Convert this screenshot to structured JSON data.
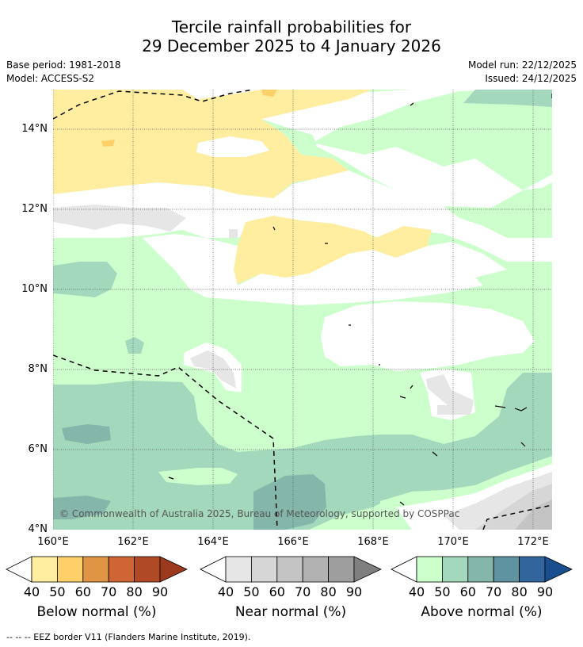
{
  "title": {
    "line1": "Tercile rainfall probabilities for",
    "line2": "29 December 2025 to 4 January 2026"
  },
  "meta_left": {
    "base_period": "Base period: 1981-2018",
    "model": "Model: ACCESS-S2"
  },
  "meta_right": {
    "model_run": "Model run: 22/12/2025",
    "issued": "Issued: 24/12/2025"
  },
  "map": {
    "lat_labels": [
      "14°N",
      "12°N",
      "10°N",
      "8°N",
      "6°N",
      "4°N"
    ],
    "lon_labels": [
      "160°E",
      "162°E",
      "164°E",
      "166°E",
      "168°E",
      "170°E",
      "172°E"
    ],
    "copyright": "© Commonwealth of Australia 2025, Bureau of Meteorology, supported by COSPPac"
  },
  "legends": {
    "below": {
      "title": "Below normal (%)",
      "ticks": [
        "40",
        "50",
        "60",
        "70",
        "80",
        "90"
      ],
      "colors": [
        "#ffeda0",
        "#fed06a",
        "#e09545",
        "#cf6434",
        "#b04a26",
        "#9c3a1f"
      ]
    },
    "near": {
      "title": "Near normal (%)",
      "ticks": [
        "40",
        "50",
        "60",
        "70",
        "80",
        "90"
      ],
      "colors": [
        "#e6e6e6",
        "#d6d6d6",
        "#c4c4c4",
        "#b2b2b2",
        "#9e9e9e",
        "#7f7f7f"
      ]
    },
    "above": {
      "title": "Above normal (%)",
      "ticks": [
        "40",
        "50",
        "60",
        "70",
        "80",
        "90"
      ],
      "colors": [
        "#ccffcc",
        "#a3d8bc",
        "#84b7aa",
        "#5f93a1",
        "#31659b",
        "#1a4f8e"
      ]
    }
  },
  "footnote": "--  --  -- EEZ border V11 (Flanders Marine Institute, 2019)."
}
